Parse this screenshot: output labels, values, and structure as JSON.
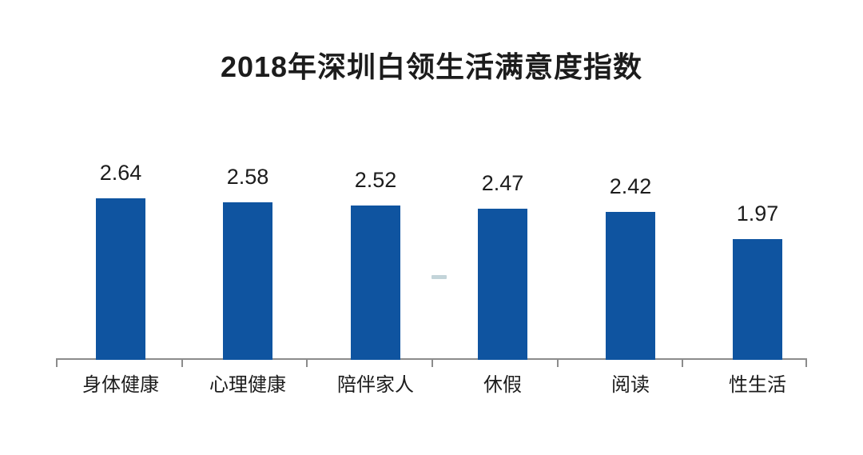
{
  "page": {
    "background": "#ffffff"
  },
  "chart_data": {
    "type": "bar",
    "title": "2018年深圳白领生活满意度指数",
    "categories": [
      "身体健康",
      "心理健康",
      "陪伴家人",
      "休假",
      "阅读",
      "性生活"
    ],
    "values": [
      2.64,
      2.58,
      2.52,
      2.47,
      2.42,
      1.97
    ],
    "value_labels": [
      "2.64",
      "2.58",
      "2.52",
      "2.47",
      "2.42",
      "1.97"
    ],
    "xlabel": "",
    "ylabel": "",
    "ylim": [
      0,
      2.9
    ],
    "grid": false,
    "legend": false,
    "value_labels_position": "above-bars",
    "bar_color": "#0f54a0",
    "axis_color": "#8c8c8c",
    "text_color": "#1c1c1c"
  }
}
